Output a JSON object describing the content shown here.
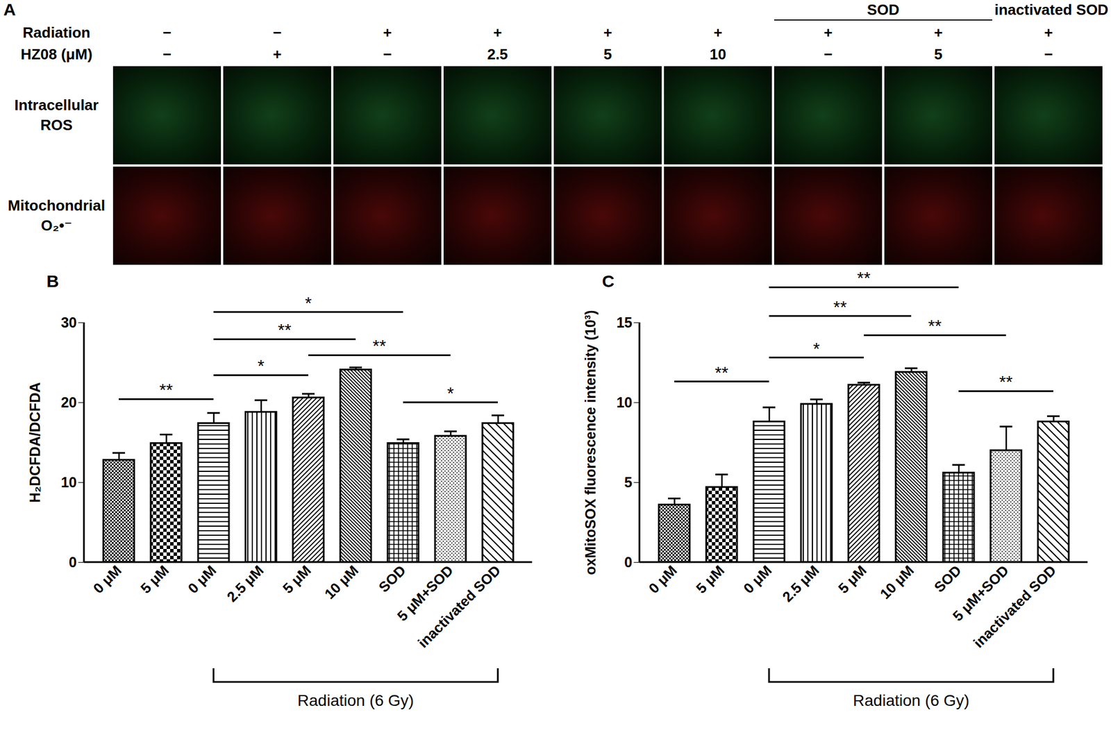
{
  "panel_a": {
    "label": "A",
    "rows": [
      {
        "label": "Radiation",
        "values": [
          "−",
          "−",
          "+",
          "+",
          "+",
          "+",
          "+",
          "+",
          "+"
        ]
      },
      {
        "label": "HZ08 (μM)",
        "values": [
          "−",
          "+",
          "−",
          "2.5",
          "5",
          "10",
          "−",
          "5",
          "−"
        ]
      }
    ],
    "groups": [
      {
        "label": "SOD",
        "columns": [
          6,
          7
        ]
      },
      {
        "label": "inactivated SOD",
        "columns": [
          8
        ]
      }
    ],
    "image_rows": [
      "Intracellular ROS",
      "Mitochondrial O₂•⁻"
    ]
  },
  "chart_data": [
    {
      "panel": "B",
      "type": "bar",
      "categories": [
        "0 μM",
        "5 μM",
        "0 μM",
        "2.5 μM",
        "5 μM",
        "10 μM",
        "SOD",
        "5 μM+SOD",
        "inactivated SOD"
      ],
      "values": [
        12.8,
        14.9,
        17.4,
        18.8,
        20.6,
        24.1,
        14.9,
        15.8,
        17.4
      ],
      "errors": [
        0.9,
        1.1,
        1.3,
        1.5,
        0.5,
        0.3,
        0.5,
        0.6,
        1.0
      ],
      "ylabel": "H₂DCFDA/DCFDA",
      "ylim": [
        0,
        30
      ],
      "yticks": [
        0,
        10,
        20,
        30
      ],
      "group": {
        "label": "Radiation (6 Gy)",
        "from": 2,
        "to": 8
      },
      "annotations": [
        {
          "text": "**",
          "from": 0,
          "to": 2,
          "y": 20.4
        },
        {
          "text": "*",
          "from": 2,
          "to": 4,
          "y": 23.4
        },
        {
          "text": "**",
          "from": 2,
          "to": 5,
          "y": 27.9
        },
        {
          "text": "*",
          "from": 2,
          "to": 6,
          "y": 31.3
        },
        {
          "text": "**",
          "from": 4,
          "to": 7,
          "y": 25.9
        },
        {
          "text": "*",
          "from": 6,
          "to": 8,
          "y": 20.0
        }
      ]
    },
    {
      "panel": "C",
      "type": "bar",
      "categories": [
        "0 μM",
        "5 μM",
        "0 μM",
        "2.5 μM",
        "5 μM",
        "10 μM",
        "SOD",
        "5 μM+SOD",
        "inactivated SOD"
      ],
      "values": [
        3.6,
        4.7,
        8.8,
        9.9,
        11.1,
        11.9,
        5.6,
        7.0,
        8.8
      ],
      "errors": [
        0.4,
        0.8,
        0.9,
        0.3,
        0.15,
        0.25,
        0.5,
        1.5,
        0.35
      ],
      "ylabel": "oxMitoSOX fluorescence intensity (10³)",
      "ylim": [
        0,
        15
      ],
      "yticks": [
        0,
        5,
        10,
        15
      ],
      "group": {
        "label": "Radiation (6 Gy)",
        "from": 2,
        "to": 8
      },
      "annotations": [
        {
          "text": "**",
          "from": 0,
          "to": 2,
          "y": 11.3
        },
        {
          "text": "*",
          "from": 2,
          "to": 4,
          "y": 12.8
        },
        {
          "text": "**",
          "from": 2,
          "to": 5,
          "y": 15.4
        },
        {
          "text": "**",
          "from": 2,
          "to": 6,
          "y": 17.2
        },
        {
          "text": "**",
          "from": 4,
          "to": 7,
          "y": 14.2
        },
        {
          "text": "**",
          "from": 6,
          "to": 8,
          "y": 10.7
        }
      ]
    }
  ]
}
